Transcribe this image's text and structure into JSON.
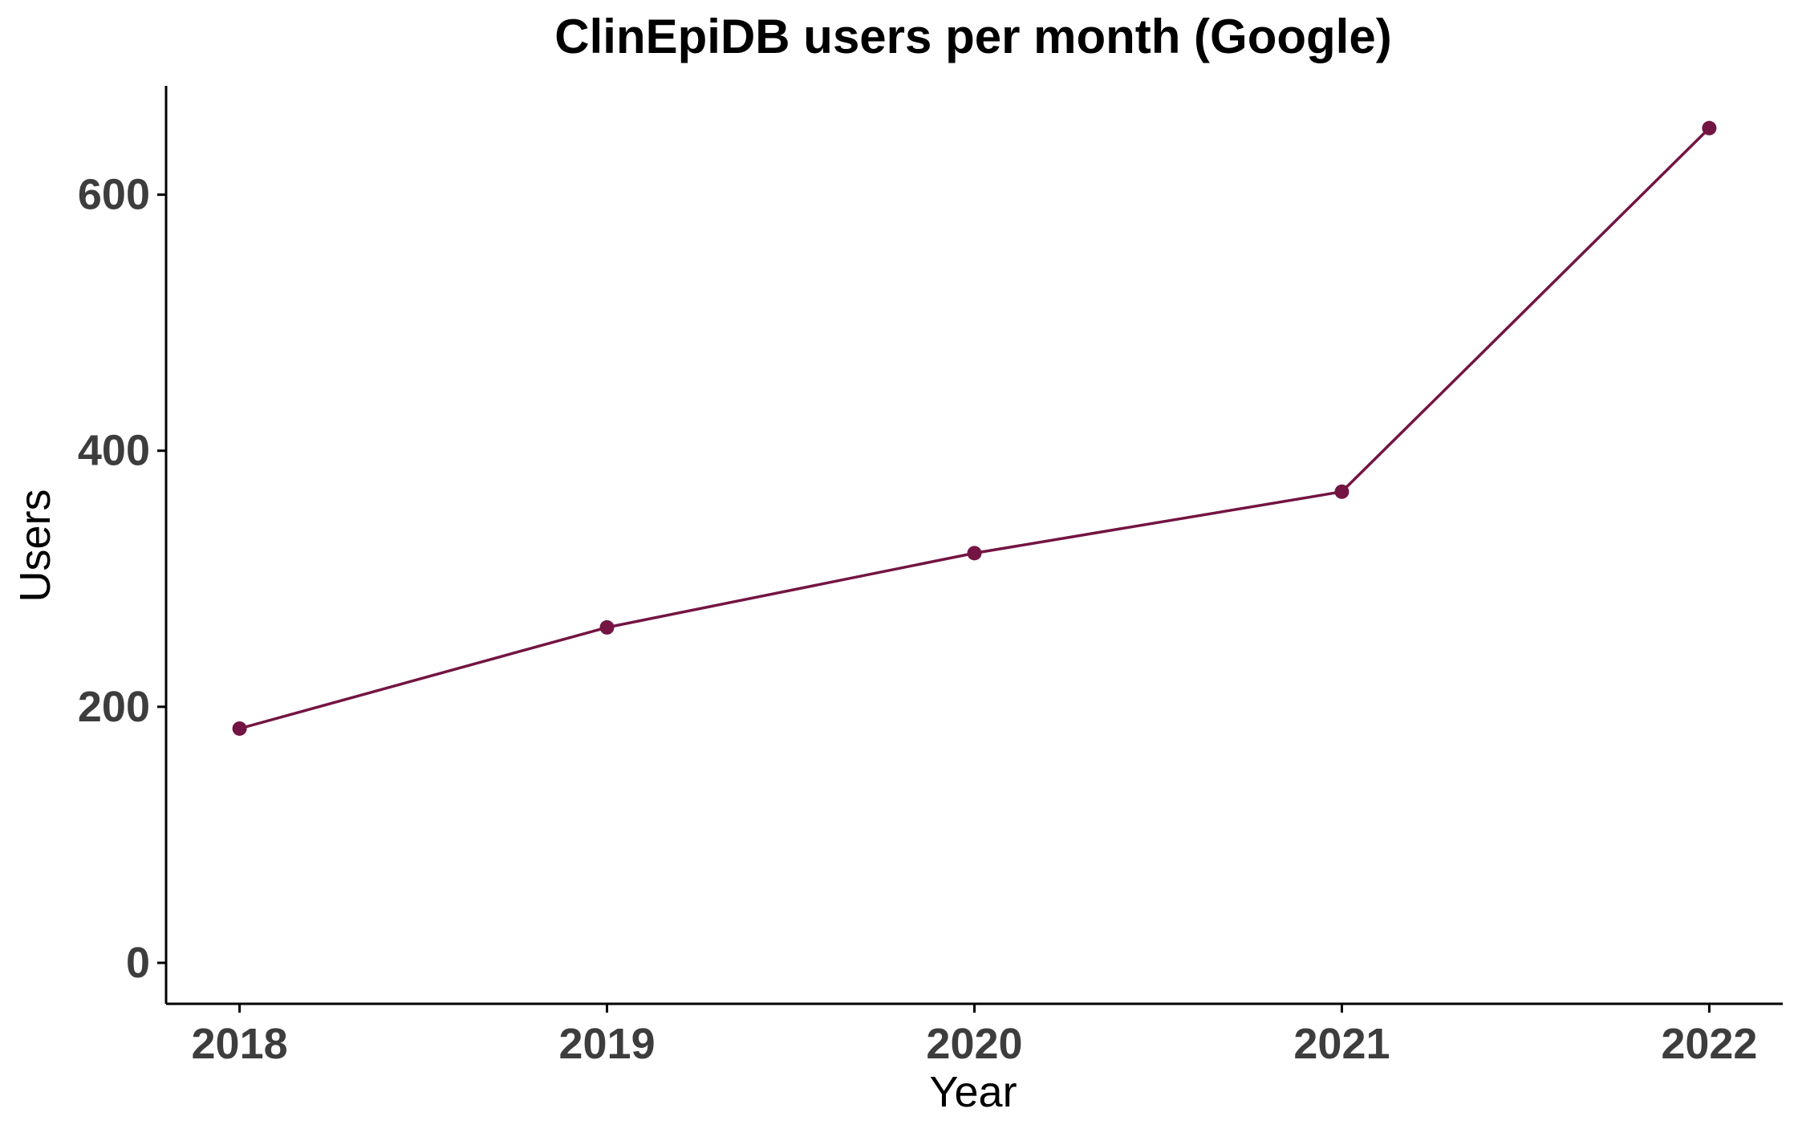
{
  "chart_data": {
    "type": "line",
    "title": "ClinEpiDB users per month (Google)",
    "xlabel": "Year",
    "ylabel": "Users",
    "x": [
      2018,
      2019,
      2020,
      2021,
      2022
    ],
    "series": [
      {
        "values": [
          183,
          262,
          320,
          368,
          652
        ]
      }
    ],
    "x_tick_labels": [
      "2018",
      "2019",
      "2020",
      "2021",
      "2022"
    ],
    "y_ticks": [
      0,
      200,
      400,
      600
    ],
    "y_tick_labels": [
      "0",
      "200",
      "400",
      "600"
    ],
    "ylim": [
      -32,
      685
    ],
    "xlim": [
      2017.8,
      2022.2
    ],
    "grid": false,
    "legend": "none",
    "colors": {
      "series": "#731443",
      "axis": "#000000",
      "tick_text": "#3d3d3d"
    }
  }
}
